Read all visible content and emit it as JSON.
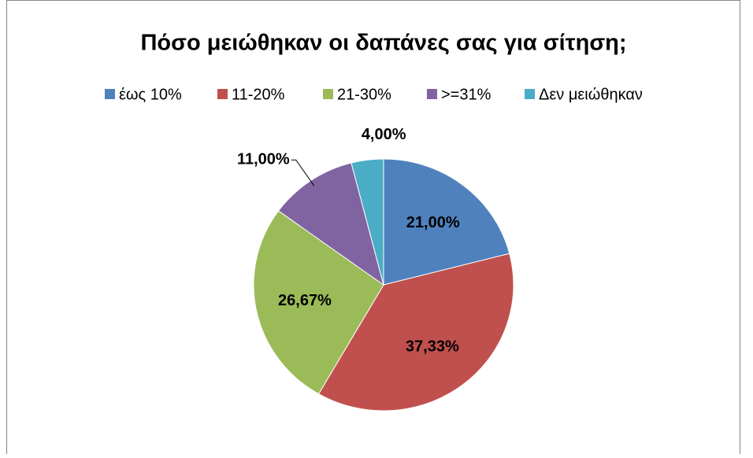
{
  "chart_data": {
    "type": "pie",
    "title": "Πόσο μειώθηκαν οι δαπάνες σας για σίτηση;",
    "categories": [
      "έως 10%",
      "11-20%",
      "21-30%",
      ">=31%",
      "Δεν μειώθηκαν"
    ],
    "values": [
      21,
      37.33,
      26.67,
      11,
      4
    ],
    "value_labels": [
      "21,00%",
      "37,33%",
      "26,67%",
      "11,00%",
      "4,00%"
    ],
    "colors": [
      "#4f81bd",
      "#c0504d",
      "#9bbb59",
      "#8064a2",
      "#4bacc6"
    ],
    "legend": "top"
  }
}
